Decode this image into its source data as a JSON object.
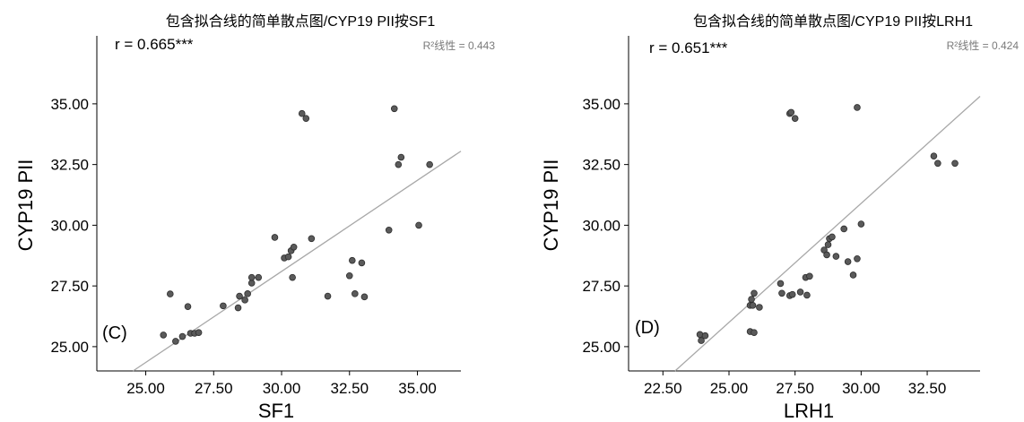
{
  "chart_data": [
    {
      "type": "scatter",
      "panel_label": "(C)",
      "title": "包含拟合线的简单散点图/CYP19 PII按SF1",
      "xlabel": "SF1",
      "ylabel": "CYP19 PII",
      "xlim": [
        23.2,
        36.6
      ],
      "ylim": [
        24.0,
        37.8
      ],
      "xticks": [
        "25.00",
        "27.50",
        "30.00",
        "32.50",
        "35.00"
      ],
      "yticks": [
        "25.00",
        "27.50",
        "30.00",
        "32.50",
        "35.00"
      ],
      "r_text": "r = 0.665***",
      "r2_text": "R²线性 = 0.443",
      "fit_line": {
        "intercept": 5.6,
        "slope": 0.75
      },
      "point_color": "#5a5a5a",
      "line_color": "#a8a8a8",
      "points": [
        [
          25.65,
          25.48
        ],
        [
          25.9,
          27.17
        ],
        [
          26.1,
          25.22
        ],
        [
          26.35,
          25.42
        ],
        [
          26.55,
          26.65
        ],
        [
          26.65,
          25.55
        ],
        [
          26.8,
          25.55
        ],
        [
          26.95,
          25.58
        ],
        [
          27.85,
          26.68
        ],
        [
          28.4,
          26.6
        ],
        [
          28.45,
          27.08
        ],
        [
          28.65,
          26.92
        ],
        [
          28.75,
          27.18
        ],
        [
          28.9,
          27.62
        ],
        [
          28.9,
          27.85
        ],
        [
          29.15,
          27.85
        ],
        [
          29.75,
          29.5
        ],
        [
          30.1,
          28.65
        ],
        [
          30.25,
          28.7
        ],
        [
          30.35,
          28.95
        ],
        [
          30.45,
          29.1
        ],
        [
          30.4,
          27.85
        ],
        [
          30.75,
          34.6
        ],
        [
          30.9,
          34.4
        ],
        [
          31.1,
          29.45
        ],
        [
          31.7,
          27.08
        ],
        [
          32.5,
          27.92
        ],
        [
          32.6,
          28.55
        ],
        [
          32.7,
          27.18
        ],
        [
          32.95,
          28.45
        ],
        [
          33.05,
          27.05
        ],
        [
          33.95,
          29.8
        ],
        [
          34.15,
          34.8
        ],
        [
          34.3,
          32.5
        ],
        [
          34.4,
          32.8
        ],
        [
          35.05,
          30.0
        ],
        [
          35.45,
          32.5
        ]
      ]
    },
    {
      "type": "scatter",
      "panel_label": "(D)",
      "title": "包含拟合线的简单散点图/CYP19 PII按LRH1",
      "xlabel": "LRH1",
      "ylabel": "CYP19 PII",
      "xlim": [
        21.2,
        34.5
      ],
      "ylim": [
        24.0,
        37.8
      ],
      "xticks": [
        "22.50",
        "25.00",
        "27.50",
        "30.00",
        "32.50"
      ],
      "yticks": [
        "25.00",
        "27.50",
        "30.00",
        "32.50",
        "35.00"
      ],
      "r_text": "r = 0.651***",
      "r2_text": "R²线性 = 0.424",
      "fit_line": {
        "intercept": 1.5,
        "slope": 0.98
      },
      "point_color": "#5a5a5a",
      "line_color": "#a8a8a8",
      "points": [
        [
          23.9,
          25.5
        ],
        [
          23.95,
          25.25
        ],
        [
          24.1,
          25.45
        ],
        [
          25.8,
          25.62
        ],
        [
          25.95,
          25.58
        ],
        [
          25.8,
          26.7
        ],
        [
          25.9,
          26.7
        ],
        [
          26.15,
          26.62
        ],
        [
          25.85,
          26.95
        ],
        [
          25.95,
          27.2
        ],
        [
          26.95,
          27.6
        ],
        [
          27.0,
          27.2
        ],
        [
          27.3,
          27.1
        ],
        [
          27.4,
          27.15
        ],
        [
          27.7,
          27.25
        ],
        [
          27.95,
          27.12
        ],
        [
          27.9,
          27.85
        ],
        [
          28.05,
          27.9
        ],
        [
          28.6,
          28.98
        ],
        [
          28.7,
          28.78
        ],
        [
          28.75,
          29.2
        ],
        [
          28.8,
          29.45
        ],
        [
          28.9,
          29.52
        ],
        [
          29.05,
          28.72
        ],
        [
          29.35,
          29.85
        ],
        [
          29.5,
          28.5
        ],
        [
          29.7,
          27.95
        ],
        [
          29.85,
          28.62
        ],
        [
          30.0,
          30.05
        ],
        [
          29.85,
          34.85
        ],
        [
          27.3,
          34.6
        ],
        [
          27.35,
          34.65
        ],
        [
          27.5,
          34.4
        ],
        [
          32.75,
          32.85
        ],
        [
          32.9,
          32.55
        ],
        [
          33.55,
          32.55
        ]
      ]
    }
  ]
}
